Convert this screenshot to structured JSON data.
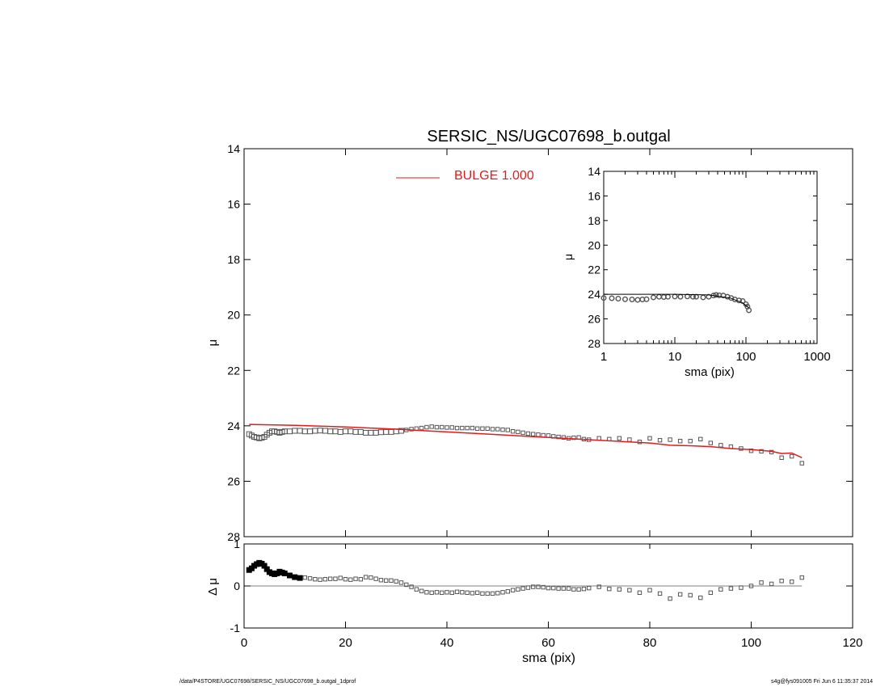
{
  "footer": {
    "path": "/data/P4STORE/UGC07698/SERSIC_NS/UGC07698_b.outgal_1dprof",
    "stamp": "s4g@fys091005  Fri Jun  6 11:35:37 2014"
  },
  "colors": {
    "model": "#e41a1c",
    "data": "#555555",
    "axes": "#000000",
    "residual_line": "#555555"
  },
  "chart_data": [
    {
      "id": "main",
      "type": "scatter",
      "title": "SERSIC_NS/UGC07698_b.outgal",
      "xlabel": "",
      "ylabel": "μ",
      "xlim": [
        0,
        120
      ],
      "ylim": [
        28,
        14
      ],
      "yticks": [
        14,
        16,
        18,
        20,
        22,
        24,
        26,
        28
      ],
      "legend": {
        "placement": "top-center",
        "entries": [
          {
            "name": "BULGE  1.000",
            "color": "#e41a1c"
          }
        ]
      },
      "series": [
        {
          "name": "data",
          "x": [
            1.0,
            1.5,
            2.0,
            2.5,
            3.0,
            3.5,
            4.0,
            4.5,
            5.0,
            5.5,
            6.0,
            6.5,
            7.0,
            7.5,
            8.0,
            9.0,
            10,
            11,
            12,
            13,
            14,
            15,
            16,
            17,
            18,
            19,
            20,
            21,
            22,
            23,
            24,
            25,
            26,
            27,
            28,
            29,
            30,
            31,
            32,
            33,
            34,
            35,
            36,
            37,
            38,
            39,
            40,
            41,
            42,
            43,
            44,
            45,
            46,
            47,
            48,
            49,
            50,
            51,
            52,
            53,
            54,
            55,
            56,
            57,
            58,
            59,
            60,
            61,
            62,
            63,
            64,
            65,
            66,
            67,
            68,
            70,
            72,
            74,
            76,
            78,
            80,
            82,
            84,
            86,
            88,
            90,
            92,
            94,
            96,
            98,
            100,
            102,
            104,
            106,
            108,
            110
          ],
          "y": [
            24.3,
            24.35,
            24.4,
            24.42,
            24.45,
            24.43,
            24.4,
            24.32,
            24.25,
            24.2,
            24.2,
            24.22,
            24.25,
            24.22,
            24.2,
            24.2,
            24.18,
            24.18,
            24.2,
            24.2,
            24.18,
            24.17,
            24.18,
            24.2,
            24.2,
            24.22,
            24.2,
            24.2,
            24.22,
            24.22,
            24.25,
            24.25,
            24.25,
            24.23,
            24.22,
            24.22,
            24.2,
            24.18,
            24.15,
            24.12,
            24.1,
            24.08,
            24.05,
            24.03,
            24.05,
            24.05,
            24.06,
            24.06,
            24.08,
            24.08,
            24.08,
            24.08,
            24.1,
            24.1,
            24.1,
            24.12,
            24.12,
            24.14,
            24.15,
            24.2,
            24.22,
            24.25,
            24.28,
            24.3,
            24.32,
            24.34,
            24.35,
            24.38,
            24.4,
            24.42,
            24.45,
            24.43,
            24.42,
            24.48,
            24.5,
            24.45,
            24.48,
            24.45,
            24.5,
            24.58,
            24.45,
            24.52,
            24.5,
            24.55,
            24.55,
            24.48,
            24.62,
            24.7,
            24.75,
            24.82,
            24.9,
            24.92,
            24.95,
            25.15,
            25.1,
            25.35
          ]
        },
        {
          "name": "BULGE  1.000",
          "style": "line",
          "x": [
            1,
            10,
            20,
            30,
            40,
            50,
            60,
            70,
            80,
            84,
            88,
            92,
            96,
            100,
            104,
            106,
            108,
            110
          ],
          "y": [
            23.95,
            23.98,
            24.04,
            24.12,
            24.22,
            24.32,
            24.42,
            24.52,
            24.62,
            24.7,
            24.72,
            24.75,
            24.82,
            24.86,
            24.92,
            25.0,
            24.98,
            25.15
          ]
        }
      ]
    },
    {
      "id": "residual",
      "type": "scatter",
      "xlabel": "sma (pix)",
      "ylabel": "Δ μ",
      "xlim": [
        0,
        120
      ],
      "ylim": [
        -1,
        1
      ],
      "xticks": [
        0,
        20,
        40,
        60,
        80,
        100,
        120
      ],
      "yticks": [
        -1,
        0,
        1
      ],
      "series": [
        {
          "name": "residual",
          "x": [
            1.0,
            1.5,
            2.0,
            2.5,
            3.0,
            3.5,
            4.0,
            4.5,
            5.0,
            5.5,
            6.0,
            6.5,
            7.0,
            7.5,
            8.0,
            9.0,
            10,
            11,
            12,
            13,
            14,
            15,
            16,
            17,
            18,
            19,
            20,
            21,
            22,
            23,
            24,
            25,
            26,
            27,
            28,
            29,
            30,
            31,
            32,
            33,
            34,
            35,
            36,
            37,
            38,
            39,
            40,
            41,
            42,
            43,
            44,
            45,
            46,
            47,
            48,
            49,
            50,
            51,
            52,
            53,
            54,
            55,
            56,
            57,
            58,
            59,
            60,
            61,
            62,
            63,
            64,
            65,
            66,
            67,
            68,
            70,
            72,
            74,
            76,
            78,
            80,
            82,
            84,
            86,
            88,
            90,
            92,
            94,
            96,
            98,
            100,
            102,
            104,
            106,
            108,
            110
          ],
          "y": [
            0.38,
            0.42,
            0.48,
            0.52,
            0.55,
            0.53,
            0.48,
            0.4,
            0.33,
            0.3,
            0.28,
            0.3,
            0.34,
            0.32,
            0.3,
            0.25,
            0.21,
            0.19,
            0.2,
            0.18,
            0.16,
            0.15,
            0.16,
            0.17,
            0.17,
            0.19,
            0.16,
            0.15,
            0.17,
            0.16,
            0.21,
            0.2,
            0.17,
            0.14,
            0.13,
            0.13,
            0.11,
            0.08,
            0.03,
            -0.02,
            -0.08,
            -0.12,
            -0.15,
            -0.16,
            -0.15,
            -0.16,
            -0.15,
            -0.16,
            -0.14,
            -0.15,
            -0.16,
            -0.17,
            -0.16,
            -0.18,
            -0.18,
            -0.18,
            -0.17,
            -0.15,
            -0.13,
            -0.1,
            -0.08,
            -0.06,
            -0.04,
            -0.02,
            -0.02,
            -0.03,
            -0.05,
            -0.05,
            -0.06,
            -0.06,
            -0.06,
            -0.08,
            -0.08,
            -0.07,
            -0.05,
            -0.02,
            -0.07,
            -0.08,
            -0.1,
            -0.16,
            -0.1,
            -0.18,
            -0.3,
            -0.2,
            -0.22,
            -0.28,
            -0.16,
            -0.08,
            -0.06,
            -0.04,
            0.0,
            0.08,
            0.05,
            0.12,
            0.1,
            0.2
          ]
        }
      ]
    },
    {
      "id": "inset",
      "type": "scatter",
      "xlabel": "sma (pix)",
      "ylabel": "μ",
      "xscale": "log",
      "xlim": [
        1,
        1000
      ],
      "ylim": [
        28,
        14
      ],
      "xticks": [
        1,
        10,
        100,
        1000
      ],
      "yticks": [
        14,
        16,
        18,
        20,
        22,
        24,
        26,
        28
      ],
      "series": [
        {
          "name": "data",
          "x": [
            1.0,
            1.3,
            1.6,
            2.0,
            2.5,
            3.0,
            3.5,
            4.0,
            5.0,
            6.0,
            7.0,
            8.0,
            10,
            12,
            15,
            18,
            20,
            25,
            30,
            35,
            38,
            42,
            48,
            55,
            62,
            70,
            80,
            90,
            100,
            105,
            110
          ],
          "y": [
            24.3,
            24.32,
            24.35,
            24.4,
            24.42,
            24.45,
            24.42,
            24.4,
            24.25,
            24.2,
            24.22,
            24.2,
            24.18,
            24.2,
            24.17,
            24.2,
            24.2,
            24.25,
            24.2,
            24.1,
            24.05,
            24.08,
            24.1,
            24.2,
            24.3,
            24.42,
            24.5,
            24.55,
            24.8,
            25.0,
            25.3
          ]
        },
        {
          "name": "model",
          "style": "line",
          "x": [
            1,
            10,
            30,
            60,
            90,
            110
          ],
          "y": [
            24.0,
            24.0,
            24.05,
            24.3,
            24.7,
            25.1
          ]
        }
      ]
    }
  ]
}
